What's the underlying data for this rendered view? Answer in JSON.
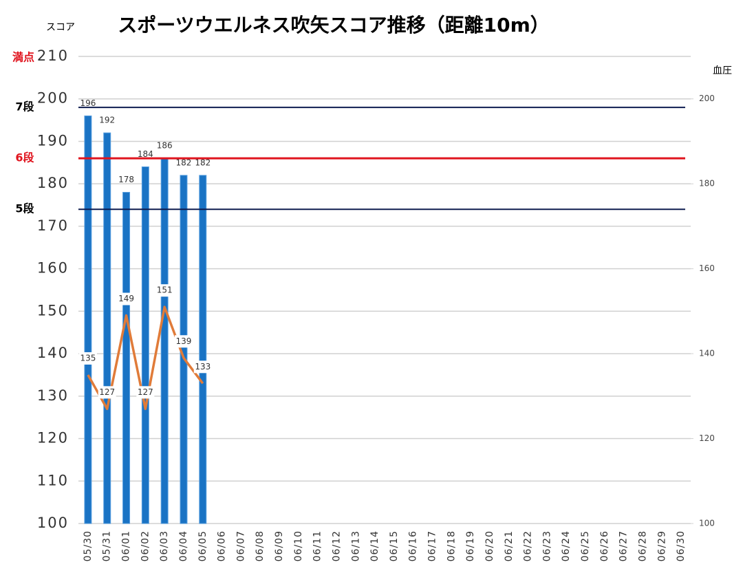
{
  "chart_data": {
    "type": "bar",
    "title": "スポーツウエルネス吹矢スコア推移（距離10m）",
    "y_label": "スコア",
    "y2_label": "血圧",
    "categories": [
      "05/30",
      "05/31",
      "06/01",
      "06/02",
      "06/03",
      "06/04",
      "06/05",
      "06/06",
      "06/07",
      "06/08",
      "06/09",
      "06/10",
      "06/11",
      "06/12",
      "06/13",
      "06/14",
      "06/15",
      "06/16",
      "06/17",
      "06/18",
      "06/19",
      "06/20",
      "06/21",
      "06/22",
      "06/23",
      "06/24",
      "06/25",
      "06/26",
      "06/27",
      "06/28",
      "06/29",
      "06/30"
    ],
    "series": [
      {
        "type": "bar",
        "color": "#1a73c4",
        "values": [
          196,
          192,
          178,
          184,
          186,
          182,
          182,
          null,
          null,
          null,
          null,
          null,
          null,
          null,
          null,
          null,
          null,
          null,
          null,
          null,
          null,
          null,
          null,
          null,
          null,
          null,
          null,
          null,
          null,
          null,
          null,
          null
        ]
      },
      {
        "type": "line",
        "axis": "y2",
        "color": "#e07b39",
        "values": [
          135,
          127,
          149,
          127,
          151,
          139,
          133,
          null,
          null,
          null,
          null,
          null,
          null,
          null,
          null,
          null,
          null,
          null,
          null,
          null,
          null,
          null,
          null,
          null,
          null,
          null,
          null,
          null,
          null,
          null,
          null,
          null
        ]
      }
    ],
    "ylim": [
      100,
      210
    ],
    "yticks": [
      100,
      110,
      120,
      130,
      140,
      150,
      160,
      170,
      180,
      190,
      200,
      210
    ],
    "y2lim": [
      100,
      210
    ],
    "y2ticks": [
      100,
      120,
      140,
      160,
      180,
      200
    ],
    "grid": true,
    "reference_lines": [
      {
        "label": "7段",
        "value": 198,
        "color": "#0d1b4f"
      },
      {
        "label": "6段",
        "value": 186,
        "color": "#e0141e"
      },
      {
        "label": "5段",
        "value": 174,
        "color": "#0d1b4f"
      }
    ],
    "annotations": [
      {
        "text": "満点",
        "value": 210,
        "color": "#e0141e"
      }
    ]
  }
}
